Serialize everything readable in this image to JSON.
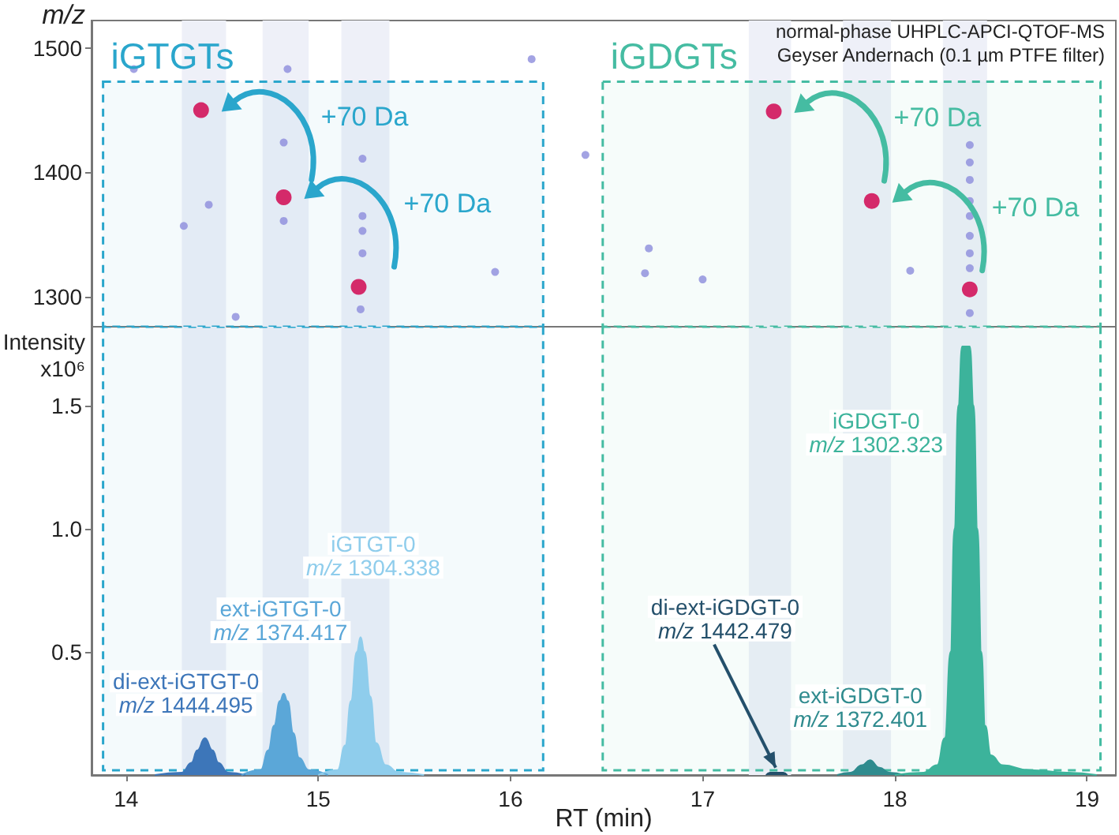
{
  "chart_data": [
    {
      "type": "scatter",
      "title": "normal-phase UHPLC-APCI-QTOF-MS",
      "subtitle": "Geyser Andernach (0.1 µm PTFE filter)",
      "ylabel": "m/z",
      "xlim": [
        13.82,
        19.15
      ],
      "ylim": [
        1276,
        1522
      ],
      "yticks": [
        1300,
        1400,
        1500
      ],
      "tick_labels": "y",
      "marker": "circle",
      "series": [
        {
          "color": "#d42a6a",
          "x": [
            14.39,
            14.82,
            15.21,
            17.37,
            17.88,
            18.39
          ],
          "values": [
            1450,
            1380,
            1308,
            1449,
            1377,
            1306
          ]
        },
        {
          "color": "#8c8cdc",
          "x": [
            14.04,
            14.84,
            16.11,
            14.3,
            14.43,
            14.82,
            14.82,
            14.57,
            15.23,
            15.23,
            15.23,
            15.23,
            15.22,
            15.92,
            16.39,
            16.72,
            16.7,
            17.0,
            18.08,
            18.39,
            18.39,
            18.39,
            18.39,
            18.39,
            18.39,
            18.39,
            18.39,
            18.39
          ],
          "values": [
            1483,
            1483,
            1491,
            1357,
            1374,
            1424,
            1361,
            1284,
            1411,
            1365,
            1353,
            1335,
            1290,
            1320,
            1414,
            1339,
            1319,
            1314,
            1321,
            1422,
            1408,
            1394,
            1377,
            1365,
            1349,
            1335,
            1323,
            1287
          ]
        }
      ],
      "bands": [
        {
          "axis": "x",
          "from": 14.29,
          "to": 14.52,
          "color": "#eef0f8"
        },
        {
          "axis": "x",
          "from": 14.71,
          "to": 14.95,
          "color": "#eef0f8"
        },
        {
          "axis": "x",
          "from": 15.12,
          "to": 15.37,
          "color": "#eef0f8"
        },
        {
          "axis": "x",
          "from": 17.24,
          "to": 17.46,
          "color": "#eef0f8"
        },
        {
          "axis": "x",
          "from": 17.73,
          "to": 17.98,
          "color": "#eef0f8"
        },
        {
          "axis": "x",
          "from": 18.25,
          "to": 18.48,
          "color": "#eef0f8"
        },
        {
          "axis": "x",
          "from": 13.88,
          "to": 16.17,
          "label": "iGTGTs",
          "color": "#2aa6cc"
        },
        {
          "axis": "x",
          "from": 16.48,
          "to": 19.07,
          "label": "iGDGTs",
          "color": "#45bca2"
        }
      ],
      "annotations": [
        "+70 Da",
        "+70 Da",
        "+70 Da",
        "+70 Da"
      ]
    },
    {
      "type": "area",
      "xlabel": "RT (min)",
      "ylabel": "Intensity x10⁶",
      "xlim": [
        13.82,
        19.15
      ],
      "ylim": [
        0,
        1.82
      ],
      "xticks": [
        14,
        15,
        16,
        17,
        18,
        19
      ],
      "yticks": [
        0.5,
        {
          "value": 1,
          "label": "1.0"
        },
        1.5
      ],
      "series": [
        {
          "name": "di-ext-iGTGT-0",
          "color": "#3d76b9",
          "x": [
            14.15,
            14.29,
            14.34,
            14.37,
            14.41,
            14.45,
            14.48,
            14.53,
            14.62
          ],
          "values": [
            0,
            0.01,
            0.05,
            0.1,
            0.15,
            0.1,
            0.05,
            0.01,
            0
          ]
        },
        {
          "name": "ext-iGTGT-0",
          "color": "#5ba7d8",
          "x": [
            14.6,
            14.7,
            14.74,
            14.77,
            14.8,
            14.82,
            14.84,
            14.87,
            14.9,
            14.95,
            15.05
          ],
          "values": [
            0,
            0.02,
            0.1,
            0.2,
            0.3,
            0.33,
            0.3,
            0.17,
            0.07,
            0.02,
            0
          ]
        },
        {
          "name": "iGTGT-0",
          "color": "#8fcdec",
          "x": [
            15.0,
            15.1,
            15.14,
            15.17,
            15.2,
            15.22,
            15.24,
            15.27,
            15.3,
            15.35,
            15.42,
            15.55
          ],
          "values": [
            0,
            0.02,
            0.12,
            0.3,
            0.5,
            0.56,
            0.5,
            0.32,
            0.13,
            0.04,
            0.01,
            0
          ]
        },
        {
          "name": "di-ext-iGDGT-0",
          "color": "#24506b",
          "x": [
            17.33,
            17.35,
            17.42,
            17.44
          ],
          "values": [
            0,
            0.01,
            0.01,
            0
          ]
        },
        {
          "name": "ext-iGDGT-0",
          "color": "#2f8b8e",
          "x": [
            17.7,
            17.77,
            17.83,
            17.87,
            17.92,
            17.97,
            18.05
          ],
          "values": [
            0,
            0.01,
            0.04,
            0.06,
            0.03,
            0.01,
            0
          ]
        },
        {
          "name": "iGDGT-0",
          "color": "#3cb39b",
          "x": [
            18.0,
            18.15,
            18.22,
            18.26,
            18.29,
            18.31,
            18.33,
            18.35,
            18.39,
            18.41,
            18.43,
            18.45,
            18.47,
            18.5,
            18.56,
            18.7,
            18.9,
            19.05
          ],
          "values": [
            0,
            0.01,
            0.04,
            0.15,
            0.5,
            1.0,
            1.5,
            1.74,
            1.74,
            1.5,
            1.0,
            0.5,
            0.2,
            0.08,
            0.04,
            0.02,
            0.01,
            0
          ]
        }
      ],
      "bands": [
        {
          "axis": "x",
          "from": 14.29,
          "to": 14.52,
          "color": "#eef0f8"
        },
        {
          "axis": "x",
          "from": 14.71,
          "to": 14.95,
          "color": "#eef0f8"
        },
        {
          "axis": "x",
          "from": 15.12,
          "to": 15.37,
          "color": "#eef0f8"
        },
        {
          "axis": "x",
          "from": 17.24,
          "to": 17.46,
          "color": "#eef0f8"
        },
        {
          "axis": "x",
          "from": 17.73,
          "to": 17.98,
          "color": "#eef0f8"
        },
        {
          "axis": "x",
          "from": 18.25,
          "to": 18.48,
          "color": "#eef0f8"
        },
        {
          "axis": "x",
          "from": 13.88,
          "to": 16.17,
          "color": "#2aa6cc"
        },
        {
          "axis": "x",
          "from": 16.48,
          "to": 19.07,
          "color": "#45bca2"
        }
      ],
      "annotations": [
        {
          "text": "m/z 1444.495",
          "x": 14.41,
          "y": 0.15
        },
        {
          "text": "m/z 1374.417",
          "x": 14.82,
          "y": 0.33
        },
        {
          "text": "m/z 1304.338",
          "x": 15.22,
          "y": 0.56
        },
        {
          "text": "m/z 1442.479",
          "x": 17.38,
          "y": 0.03
        },
        {
          "text": "m/z 1372.401",
          "x": 17.87,
          "y": 0.06
        },
        {
          "text": "m/z 1302.323",
          "x": 18.33,
          "y": 1.38
        }
      ]
    }
  ]
}
